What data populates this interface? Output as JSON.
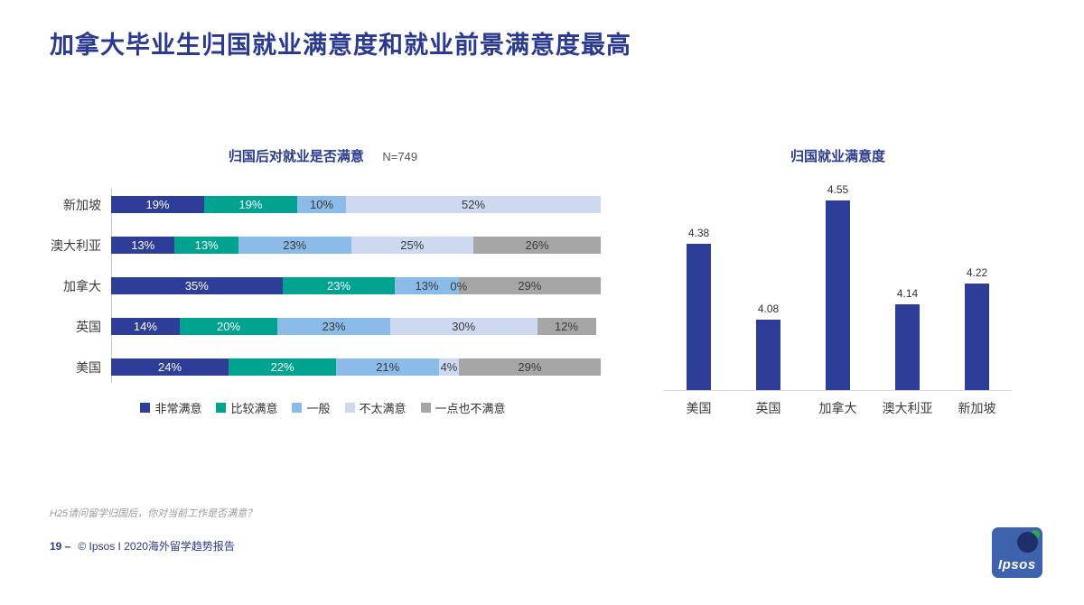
{
  "slide": {
    "title": "加拿大毕业生归国就业满意度和就业前景满意度最高",
    "footnote": "H25请问留学归国后，你对当前工作是否满意？",
    "page_number": "19 –",
    "footer_text": "© Ipsos I 2020海外留学趋势报告",
    "logo_text": "Ipsos"
  },
  "colors": {
    "title_blue": "#2B3A8F",
    "axis_gray": "#c6c6c6",
    "very_satisfied": "#2E3D98",
    "satisfied": "#00A390",
    "neutral": "#8BBBE8",
    "unsatisfied": "#CDD9F0",
    "very_unsatisfied": "#A6A6A6"
  },
  "chart_data": [
    {
      "type": "bar",
      "orientation": "horizontal-stacked",
      "title": "归国后对就业是否满意",
      "subtitle": "N=749",
      "categories": [
        "新加坡",
        "澳大利亚",
        "加拿大",
        "英国",
        "美国"
      ],
      "series": [
        {
          "name": "非常满意",
          "color": "#2E3D98",
          "label_color": "#FFFFFF",
          "values": [
            19,
            13,
            35,
            14,
            24
          ]
        },
        {
          "name": "比较满意",
          "color": "#00A390",
          "label_color": "#FFFFFF",
          "values": [
            19,
            13,
            23,
            20,
            22
          ]
        },
        {
          "name": "一般",
          "color": "#8BBBE8",
          "label_color": "#3A3A3A",
          "values": [
            10,
            23,
            13,
            23,
            21
          ]
        },
        {
          "name": "不太满意",
          "color": "#CDD9F0",
          "label_color": "#3A3A3A",
          "values": [
            52,
            25,
            0,
            30,
            4
          ]
        },
        {
          "name": "一点也不满意",
          "color": "#A6A6A6",
          "label_color": "#3A3A3A",
          "values": [
            null,
            26,
            29,
            12,
            29
          ]
        }
      ],
      "value_suffix": "%",
      "xlim": [
        0,
        100
      ],
      "legend_position": "bottom",
      "grid": false
    },
    {
      "type": "bar",
      "orientation": "vertical",
      "title": "归国就业满意度",
      "categories": [
        "美国",
        "英国",
        "加拿大",
        "澳大利亚",
        "新加坡"
      ],
      "values": [
        4.38,
        4.08,
        4.55,
        4.14,
        4.22
      ],
      "ylim": [
        3.8,
        4.6
      ],
      "bar_color": "#2E3D98",
      "grid": false,
      "legend_position": "none"
    }
  ]
}
